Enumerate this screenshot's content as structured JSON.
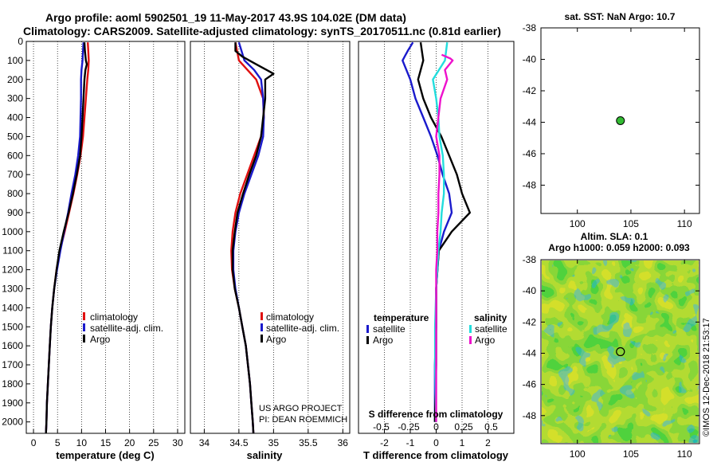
{
  "header": {
    "line1": "Argo profile: aoml 5902501_19 11-May-2017 43.9S 104.02E (DM data)",
    "line2": "Climatology: CARS2009. Satellite-adjusted climatology: synTS_20170511.nc (0.81d earlier)"
  },
  "colors": {
    "climatology": "#e01010",
    "satellite": "#1a1acc",
    "argo": "#000000",
    "satellite_salinity": "#22dddd",
    "argo_salinity": "#ee11cc",
    "float_marker": "#33bb33"
  },
  "chart_data": [
    {
      "id": "temperature",
      "type": "line",
      "xlabel": "temperature (deg C)",
      "xlim": [
        -1.5,
        31.5
      ],
      "ylim": [
        2060,
        0
      ],
      "xticks": [
        0,
        5,
        10,
        15,
        20,
        25,
        30
      ],
      "yticks": [
        0,
        100,
        200,
        300,
        400,
        500,
        600,
        700,
        800,
        900,
        1000,
        1100,
        1200,
        1300,
        1400,
        1500,
        1600,
        1700,
        1800,
        1900,
        2000
      ],
      "legend": [
        "climatology",
        "satellite-adj. clim.",
        "Argo"
      ],
      "series": [
        {
          "name": "climatology",
          "color": "#e01010",
          "points": [
            [
              11.3,
              5
            ],
            [
              11.4,
              50
            ],
            [
              11.5,
              100
            ],
            [
              11.4,
              150
            ],
            [
              11.2,
              200
            ],
            [
              10.9,
              300
            ],
            [
              10.6,
              400
            ],
            [
              10.3,
              500
            ],
            [
              9.8,
              600
            ],
            [
              9.1,
              700
            ],
            [
              8.3,
              800
            ],
            [
              7.4,
              900
            ],
            [
              6.5,
              1000
            ],
            [
              5.5,
              1100
            ],
            [
              4.8,
              1200
            ],
            [
              4.3,
              1300
            ],
            [
              3.9,
              1400
            ],
            [
              3.6,
              1500
            ],
            [
              3.4,
              1600
            ],
            [
              3.2,
              1700
            ],
            [
              3.0,
              1800
            ],
            [
              2.8,
              1900
            ],
            [
              2.7,
              2000
            ],
            [
              2.6,
              2060
            ]
          ]
        },
        {
          "name": "satellite-adj. clim.",
          "color": "#1a1acc",
          "points": [
            [
              10.4,
              5
            ],
            [
              10.3,
              50
            ],
            [
              10.2,
              100
            ],
            [
              10.0,
              150
            ],
            [
              9.9,
              200
            ],
            [
              9.9,
              300
            ],
            [
              9.8,
              400
            ],
            [
              9.7,
              500
            ],
            [
              9.3,
              600
            ],
            [
              8.7,
              700
            ],
            [
              7.9,
              800
            ],
            [
              7.2,
              900
            ],
            [
              6.4,
              1000
            ],
            [
              5.6,
              1100
            ],
            [
              4.9,
              1200
            ],
            [
              4.3,
              1300
            ],
            [
              3.9,
              1400
            ],
            [
              3.6,
              1500
            ],
            [
              3.4,
              1600
            ],
            [
              3.2,
              1700
            ],
            [
              3.0,
              1800
            ],
            [
              2.8,
              1900
            ],
            [
              2.7,
              2000
            ],
            [
              2.6,
              2060
            ]
          ]
        },
        {
          "name": "Argo",
          "color": "#000000",
          "points": [
            [
              10.6,
              5
            ],
            [
              10.7,
              50
            ],
            [
              10.9,
              100
            ],
            [
              11.1,
              120
            ],
            [
              10.8,
              150
            ],
            [
              10.6,
              200
            ],
            [
              10.4,
              300
            ],
            [
              10.2,
              400
            ],
            [
              10.0,
              500
            ],
            [
              9.7,
              600
            ],
            [
              9.0,
              700
            ],
            [
              8.2,
              800
            ],
            [
              7.3,
              900
            ],
            [
              6.3,
              1000
            ],
            [
              5.4,
              1100
            ],
            [
              4.8,
              1200
            ],
            [
              4.3,
              1300
            ],
            [
              3.9,
              1400
            ],
            [
              3.6,
              1500
            ],
            [
              3.4,
              1600
            ],
            [
              3.2,
              1700
            ],
            [
              3.0,
              1800
            ],
            [
              2.8,
              1900
            ],
            [
              2.7,
              2000
            ],
            [
              2.6,
              2060
            ]
          ]
        }
      ]
    },
    {
      "id": "salinity",
      "type": "line",
      "xlabel": "salinity",
      "xlim": [
        33.8,
        36.1
      ],
      "ylim": [
        2060,
        0
      ],
      "xticks": [
        34,
        34.5,
        35,
        35.5,
        36
      ],
      "xticklabels": [
        "34",
        "34.5",
        "35",
        "35.5",
        "36"
      ],
      "legend": [
        "climatology",
        "satellite-adj. clim.",
        "Argo"
      ],
      "credit": [
        "US ARGO PROJECT",
        "PI: DEAN ROEMMICH"
      ],
      "series": [
        {
          "name": "climatology",
          "color": "#e01010",
          "points": [
            [
              34.45,
              5
            ],
            [
              34.5,
              100
            ],
            [
              34.75,
              200
            ],
            [
              34.85,
              300
            ],
            [
              34.86,
              400
            ],
            [
              34.82,
              500
            ],
            [
              34.72,
              600
            ],
            [
              34.62,
              700
            ],
            [
              34.52,
              800
            ],
            [
              34.45,
              900
            ],
            [
              34.41,
              1000
            ],
            [
              34.39,
              1100
            ],
            [
              34.4,
              1200
            ],
            [
              34.44,
              1300
            ],
            [
              34.5,
              1400
            ],
            [
              34.55,
              1500
            ],
            [
              34.6,
              1600
            ],
            [
              34.63,
              1700
            ],
            [
              34.66,
              1800
            ],
            [
              34.68,
              1900
            ],
            [
              34.7,
              2000
            ],
            [
              34.71,
              2060
            ]
          ]
        },
        {
          "name": "satellite-adj. clim.",
          "color": "#1a1acc",
          "points": [
            [
              34.5,
              5
            ],
            [
              34.58,
              100
            ],
            [
              34.72,
              150
            ],
            [
              34.82,
              200
            ],
            [
              34.85,
              300
            ],
            [
              34.86,
              400
            ],
            [
              34.85,
              500
            ],
            [
              34.78,
              600
            ],
            [
              34.68,
              700
            ],
            [
              34.58,
              800
            ],
            [
              34.5,
              900
            ],
            [
              34.45,
              1000
            ],
            [
              34.42,
              1100
            ],
            [
              34.42,
              1200
            ],
            [
              34.45,
              1300
            ],
            [
              34.5,
              1400
            ],
            [
              34.55,
              1500
            ],
            [
              34.6,
              1600
            ],
            [
              34.63,
              1700
            ],
            [
              34.66,
              1800
            ],
            [
              34.68,
              1900
            ],
            [
              34.7,
              2000
            ],
            [
              34.71,
              2060
            ]
          ]
        },
        {
          "name": "Argo",
          "color": "#000000",
          "points": [
            [
              34.45,
              5
            ],
            [
              34.45,
              50
            ],
            [
              34.55,
              80
            ],
            [
              34.75,
              120
            ],
            [
              34.9,
              150
            ],
            [
              35.0,
              170
            ],
            [
              34.88,
              200
            ],
            [
              34.88,
              300
            ],
            [
              34.85,
              400
            ],
            [
              34.82,
              500
            ],
            [
              34.75,
              600
            ],
            [
              34.65,
              700
            ],
            [
              34.56,
              800
            ],
            [
              34.48,
              900
            ],
            [
              34.44,
              1000
            ],
            [
              34.41,
              1100
            ],
            [
              34.41,
              1200
            ],
            [
              34.44,
              1300
            ],
            [
              34.5,
              1400
            ],
            [
              34.55,
              1500
            ],
            [
              34.6,
              1600
            ],
            [
              34.63,
              1700
            ],
            [
              34.66,
              1800
            ],
            [
              34.68,
              1900
            ],
            [
              34.7,
              2000
            ],
            [
              34.71,
              2060
            ]
          ]
        }
      ]
    },
    {
      "id": "difference",
      "type": "line",
      "xlabel": "T difference from climatology",
      "xlabel2": "S difference from climatology",
      "xlim": [
        -3,
        3
      ],
      "ylim": [
        2060,
        0
      ],
      "xticks": [
        -2,
        -1,
        0,
        1,
        2
      ],
      "sticks": [
        -0.5,
        -0.25,
        0,
        0.25,
        0.5
      ],
      "sticklabels": [
        "-0.5",
        "-0.25",
        "0",
        "0.25",
        "0.5"
      ],
      "legend_temperature": {
        "title": "temperature",
        "items": [
          "satellite",
          "Argo"
        ]
      },
      "legend_salinity": {
        "title": "salinity",
        "items": [
          "satellite",
          "Argo"
        ]
      },
      "series": [
        {
          "name": "temperature satellite",
          "color": "#1a1acc",
          "points": [
            [
              -0.9,
              5
            ],
            [
              -1.1,
              50
            ],
            [
              -1.3,
              100
            ],
            [
              -1.0,
              200
            ],
            [
              -0.8,
              300
            ],
            [
              -0.5,
              400
            ],
            [
              -0.2,
              500
            ],
            [
              0.05,
              600
            ],
            [
              0.25,
              700
            ],
            [
              0.5,
              800
            ],
            [
              0.6,
              900
            ],
            [
              0.3,
              1000
            ],
            [
              0.1,
              1100
            ],
            [
              0.05,
              1200
            ],
            [
              0.0,
              1300
            ],
            [
              0.0,
              1500
            ],
            [
              -0.05,
              1700
            ],
            [
              -0.05,
              2000
            ]
          ]
        },
        {
          "name": "temperature Argo",
          "color": "#000000",
          "points": [
            [
              -0.6,
              5
            ],
            [
              -0.5,
              100
            ],
            [
              -0.7,
              200
            ],
            [
              -0.5,
              300
            ],
            [
              -0.2,
              400
            ],
            [
              0.2,
              500
            ],
            [
              0.5,
              600
            ],
            [
              0.8,
              700
            ],
            [
              1.0,
              800
            ],
            [
              1.3,
              900
            ],
            [
              0.6,
              1000
            ],
            [
              0.1,
              1100
            ],
            [
              0.05,
              1200
            ],
            [
              0.0,
              1300
            ],
            [
              0.0,
              1500
            ],
            [
              0.0,
              1700
            ],
            [
              -0.05,
              2000
            ]
          ]
        },
        {
          "name": "salinity satellite",
          "color": "#22dddd",
          "points": [
            [
              0.1,
              5
            ],
            [
              0.08,
              100
            ],
            [
              -0.03,
              200
            ],
            [
              0.0,
              300
            ],
            [
              0.02,
              400
            ],
            [
              0.03,
              500
            ],
            [
              0.06,
              600
            ],
            [
              0.07,
              700
            ],
            [
              0.07,
              800
            ],
            [
              0.05,
              900
            ],
            [
              0.04,
              1000
            ],
            [
              0.02,
              1100
            ],
            [
              0.01,
              1200
            ],
            [
              0.0,
              1300
            ],
            [
              -0.01,
              1500
            ],
            [
              -0.01,
              1700
            ],
            [
              0.0,
              2000
            ]
          ]
        },
        {
          "name": "salinity Argo",
          "color": "#ee11cc",
          "points": [
            [
              0.05,
              70
            ],
            [
              0.13,
              90
            ],
            [
              0.15,
              100
            ],
            [
              0.08,
              150
            ],
            [
              0.1,
              200
            ],
            [
              0.04,
              300
            ],
            [
              0.0,
              500
            ],
            [
              0.03,
              600
            ],
            [
              0.03,
              700
            ],
            [
              0.02,
              800
            ],
            [
              0.02,
              900
            ],
            [
              0.01,
              1000
            ],
            [
              0.01,
              1100
            ],
            [
              0.0,
              1200
            ],
            [
              0.0,
              1500
            ],
            [
              0.0,
              2000
            ]
          ]
        }
      ]
    },
    {
      "id": "sst_map",
      "type": "scatter",
      "title": "sat. SST: NaN Argo: 10.7",
      "xlim": [
        96.6,
        111.4
      ],
      "ylim": [
        -49.8,
        -38
      ],
      "xticks": [
        100,
        105,
        110
      ],
      "yticks": [
        -38,
        -40,
        -42,
        -44,
        -46,
        -48
      ],
      "points": [
        {
          "lon": 104.02,
          "lat": -43.9
        }
      ]
    },
    {
      "id": "sla_map",
      "type": "heatmap",
      "title1": "Altim. SLA: 0.1",
      "title2": "Argo h1000: 0.059 h2000: 0.093",
      "xlim": [
        96.6,
        111.4
      ],
      "ylim": [
        -49.8,
        -38
      ],
      "xticks": [
        100,
        105,
        110
      ],
      "yticks": [
        -38,
        -40,
        -42,
        -44,
        -46,
        -48
      ],
      "points": [
        {
          "lon": 104.02,
          "lat": -43.9
        }
      ],
      "credit": "©IMOS 12-Dec-2018 21:53:17"
    }
  ]
}
